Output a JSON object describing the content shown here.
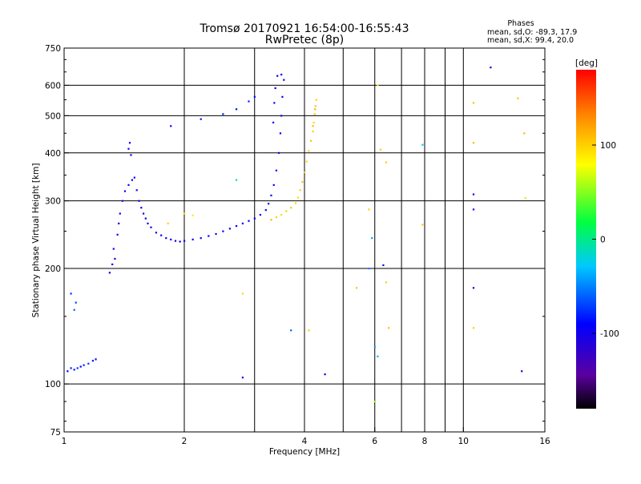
{
  "header": {
    "title_line1": "Tromsø 20170921 16:54:00-16:55:43",
    "title_line2": "RwPretec (8p)",
    "phases_title": "Phases",
    "phases_o": "mean, sd,O: -89.3, 17.9",
    "phases_x": "mean, sd,X:  99.4, 20.0"
  },
  "chart_data": {
    "type": "scatter",
    "title": "Tromsø 20170921 16:54:00-16:55:43",
    "subtitle": "RwPretec (8p)",
    "xlabel": "Frequency [MHz]",
    "ylabel": "Stationary phase Virtual Height [km]",
    "xscale": "log",
    "yscale": "log",
    "xlim": [
      1,
      16
    ],
    "ylim": [
      75,
      750
    ],
    "xticks": [
      1,
      2,
      4,
      6,
      8,
      10,
      16
    ],
    "yticks": [
      75,
      100,
      200,
      300,
      400,
      500,
      600,
      750
    ],
    "x_gridlines": [
      2,
      3,
      4,
      5,
      6,
      7,
      8,
      9,
      10
    ],
    "y_gridlines": [
      100,
      200,
      300,
      400,
      500,
      600
    ],
    "grid": true,
    "colorbar": {
      "label": "[deg]",
      "min": -180,
      "max": 180,
      "ticks": [
        -100,
        0,
        100
      ],
      "colormap": "rainbow: black-purple-blue-cyan-green-yellow-orange-red"
    },
    "series": [
      {
        "name": "O",
        "phase_deg": -89.3,
        "points": [
          [
            1.02,
            108,
            -95
          ],
          [
            1.04,
            110,
            -80
          ],
          [
            1.06,
            109,
            -85
          ],
          [
            1.08,
            110,
            -75
          ],
          [
            1.1,
            111,
            -90
          ],
          [
            1.12,
            112,
            -80
          ],
          [
            1.15,
            113,
            -70
          ],
          [
            1.18,
            115,
            -85
          ],
          [
            1.2,
            116,
            -100
          ],
          [
            1.06,
            156,
            -60
          ],
          [
            1.07,
            163,
            -70
          ],
          [
            1.04,
            172,
            -75
          ],
          [
            1.3,
            195,
            -100
          ],
          [
            1.32,
            205,
            -105
          ],
          [
            1.34,
            212,
            -110
          ],
          [
            1.33,
            225,
            -95
          ],
          [
            1.36,
            245,
            -100
          ],
          [
            1.37,
            262,
            -110
          ],
          [
            1.38,
            278,
            -105
          ],
          [
            1.4,
            300,
            -100
          ],
          [
            1.42,
            318,
            -95
          ],
          [
            1.45,
            330,
            -100
          ],
          [
            1.48,
            340,
            -95
          ],
          [
            1.5,
            345,
            -100
          ],
          [
            1.52,
            320,
            -105
          ],
          [
            1.54,
            300,
            -100
          ],
          [
            1.56,
            288,
            -95
          ],
          [
            1.58,
            278,
            -100
          ],
          [
            1.6,
            270,
            -95
          ],
          [
            1.62,
            262,
            -100
          ],
          [
            1.65,
            256,
            -95
          ],
          [
            1.7,
            248,
            -100
          ],
          [
            1.75,
            244,
            -95
          ],
          [
            1.8,
            240,
            -100
          ],
          [
            1.85,
            238,
            -95
          ],
          [
            1.9,
            236,
            -100
          ],
          [
            1.95,
            235,
            -95
          ],
          [
            2.0,
            236,
            -100
          ],
          [
            1.45,
            410,
            -100
          ],
          [
            1.46,
            425,
            -95
          ],
          [
            1.47,
            395,
            -105
          ],
          [
            2.1,
            238,
            -95
          ],
          [
            2.2,
            240,
            -100
          ],
          [
            2.3,
            243,
            -90
          ],
          [
            2.4,
            246,
            -95
          ],
          [
            2.5,
            250,
            -90
          ],
          [
            2.6,
            254,
            -95
          ],
          [
            2.7,
            258,
            -90
          ],
          [
            2.8,
            262,
            -95
          ],
          [
            2.9,
            266,
            -90
          ],
          [
            3.0,
            270,
            -95
          ],
          [
            3.1,
            276,
            -100
          ],
          [
            3.2,
            284,
            -95
          ],
          [
            3.25,
            295,
            -100
          ],
          [
            3.3,
            310,
            -95
          ],
          [
            3.35,
            330,
            -100
          ],
          [
            3.4,
            360,
            -95
          ],
          [
            3.45,
            400,
            -100
          ],
          [
            3.48,
            450,
            -95
          ],
          [
            3.5,
            500,
            -100
          ],
          [
            3.52,
            560,
            -95
          ],
          [
            3.55,
            620,
            -100
          ],
          [
            3.5,
            640,
            -90
          ],
          [
            3.42,
            635,
            -95
          ],
          [
            3.38,
            590,
            -105
          ],
          [
            3.36,
            540,
            -100
          ],
          [
            3.34,
            480,
            -95
          ],
          [
            1.85,
            470,
            -90
          ],
          [
            2.2,
            490,
            -85
          ],
          [
            2.5,
            505,
            -80
          ],
          [
            2.7,
            520,
            -85
          ],
          [
            2.9,
            545,
            -80
          ],
          [
            3.0,
            560,
            -85
          ],
          [
            2.8,
            104,
            -90
          ],
          [
            4.5,
            106,
            -95
          ],
          [
            6.3,
            204,
            -100
          ],
          [
            10.6,
            285,
            -105
          ],
          [
            10.6,
            178,
            -100
          ],
          [
            14.0,
            108,
            -95
          ],
          [
            11.7,
            668,
            -95
          ],
          [
            10.6,
            312,
            -100
          ]
        ]
      },
      {
        "name": "X",
        "phase_deg": 99.4,
        "points": [
          [
            3.3,
            268,
            110
          ],
          [
            3.4,
            272,
            100
          ],
          [
            3.5,
            276,
            95
          ],
          [
            3.6,
            282,
            100
          ],
          [
            3.7,
            288,
            105
          ],
          [
            3.8,
            296,
            100
          ],
          [
            3.85,
            306,
            95
          ],
          [
            3.9,
            320,
            100
          ],
          [
            3.95,
            336,
            105
          ],
          [
            4.0,
            356,
            100
          ],
          [
            4.05,
            380,
            95
          ],
          [
            4.1,
            405,
            100
          ],
          [
            4.15,
            430,
            105
          ],
          [
            4.2,
            455,
            100
          ],
          [
            4.22,
            480,
            95
          ],
          [
            4.24,
            505,
            100
          ],
          [
            4.26,
            530,
            105
          ],
          [
            4.28,
            550,
            100
          ],
          [
            4.25,
            520,
            115
          ],
          [
            4.2,
            470,
            110
          ],
          [
            1.82,
            262,
            100
          ],
          [
            2.0,
            278,
            95
          ],
          [
            2.1,
            275,
            90
          ],
          [
            2.8,
            172,
            95
          ],
          [
            4.1,
            138,
            100
          ],
          [
            5.4,
            178,
            105
          ],
          [
            5.8,
            285,
            100
          ],
          [
            6.1,
            600,
            90
          ],
          [
            6.2,
            408,
            100
          ],
          [
            6.4,
            378,
            100
          ],
          [
            6.5,
            140,
            105
          ],
          [
            6.4,
            184,
            100
          ],
          [
            7.9,
            260,
            105
          ],
          [
            10.6,
            540,
            105
          ],
          [
            10.6,
            425,
            110
          ],
          [
            10.6,
            140,
            100
          ],
          [
            13.7,
            555,
            105
          ],
          [
            14.2,
            450,
            110
          ],
          [
            14.3,
            305,
            60
          ],
          [
            6.0,
            90,
            55
          ]
        ]
      },
      {
        "name": "other",
        "points": [
          [
            2.7,
            340,
            -5
          ],
          [
            6.0,
            125,
            -40
          ],
          [
            6.1,
            118,
            -35
          ],
          [
            5.8,
            200,
            -50
          ],
          [
            5.9,
            240,
            -40
          ],
          [
            7.9,
            420,
            -30
          ],
          [
            3.7,
            138,
            -60
          ]
        ]
      }
    ]
  }
}
